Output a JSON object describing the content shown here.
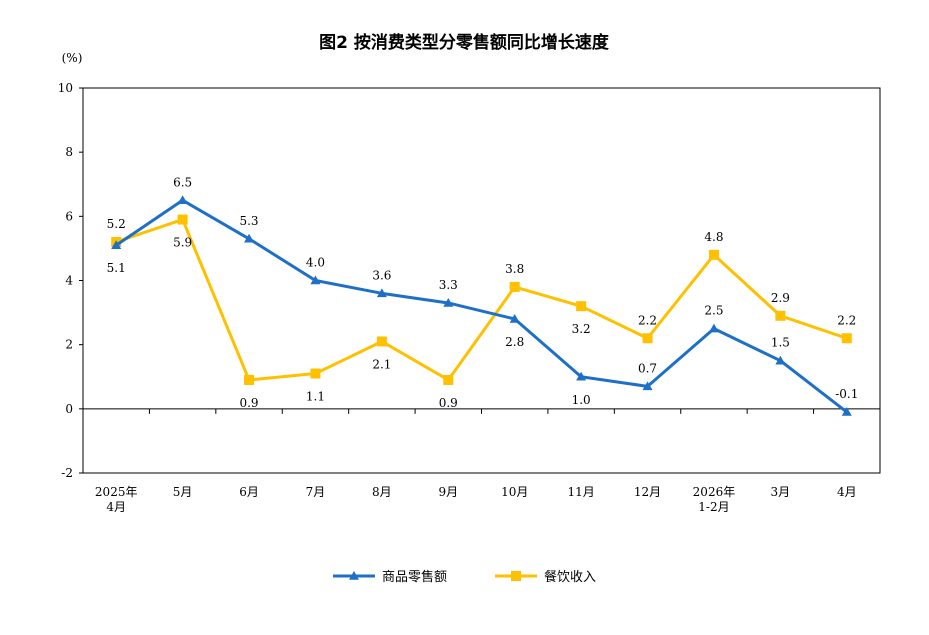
{
  "chart_data": {
    "type": "line",
    "title": "图2  按消费类型分零售额同比增长速度",
    "unit_label": "(%)",
    "ylim": [
      -2,
      10
    ],
    "yticks": [
      -2,
      0,
      2,
      4,
      6,
      8,
      10
    ],
    "grid": false,
    "legend_position": "bottom",
    "categories": [
      [
        "2025年",
        "4月"
      ],
      [
        "5月"
      ],
      [
        "6月"
      ],
      [
        "7月"
      ],
      [
        "8月"
      ],
      [
        "9月"
      ],
      [
        "10月"
      ],
      [
        "11月"
      ],
      [
        "12月"
      ],
      [
        "2026年",
        "1-2月"
      ],
      [
        "3月"
      ],
      [
        "4月"
      ]
    ],
    "series": [
      {
        "name": "商品零售额",
        "color": "#1E6FC8",
        "marker": "triangle",
        "values": [
          5.1,
          6.5,
          5.3,
          4.0,
          3.6,
          3.3,
          2.8,
          1.0,
          0.7,
          2.5,
          1.5,
          -0.1
        ],
        "labels": [
          "5.1",
          "6.5",
          "5.3",
          "4.0",
          "3.6",
          "3.3",
          "2.8",
          "1.0",
          "0.7",
          "2.5",
          "1.5",
          "-0.1"
        ],
        "label_pos": [
          "below",
          "above",
          "above",
          "above",
          "above",
          "above",
          "below",
          "below",
          "above",
          "above",
          "above",
          "above"
        ]
      },
      {
        "name": "餐饮收入",
        "color": "#FFC000",
        "marker": "square",
        "values": [
          5.2,
          5.9,
          0.9,
          1.1,
          2.1,
          0.9,
          3.8,
          3.2,
          2.2,
          4.8,
          2.9,
          2.2
        ],
        "labels": [
          "5.2",
          "5.9",
          "0.9",
          "1.1",
          "2.1",
          "0.9",
          "3.8",
          "3.2",
          "2.2",
          "4.8",
          "2.9",
          "2.2"
        ],
        "label_pos": [
          "above",
          "below",
          "below",
          "below",
          "below",
          "below",
          "above",
          "below",
          "above",
          "above",
          "above",
          "above"
        ]
      }
    ]
  }
}
